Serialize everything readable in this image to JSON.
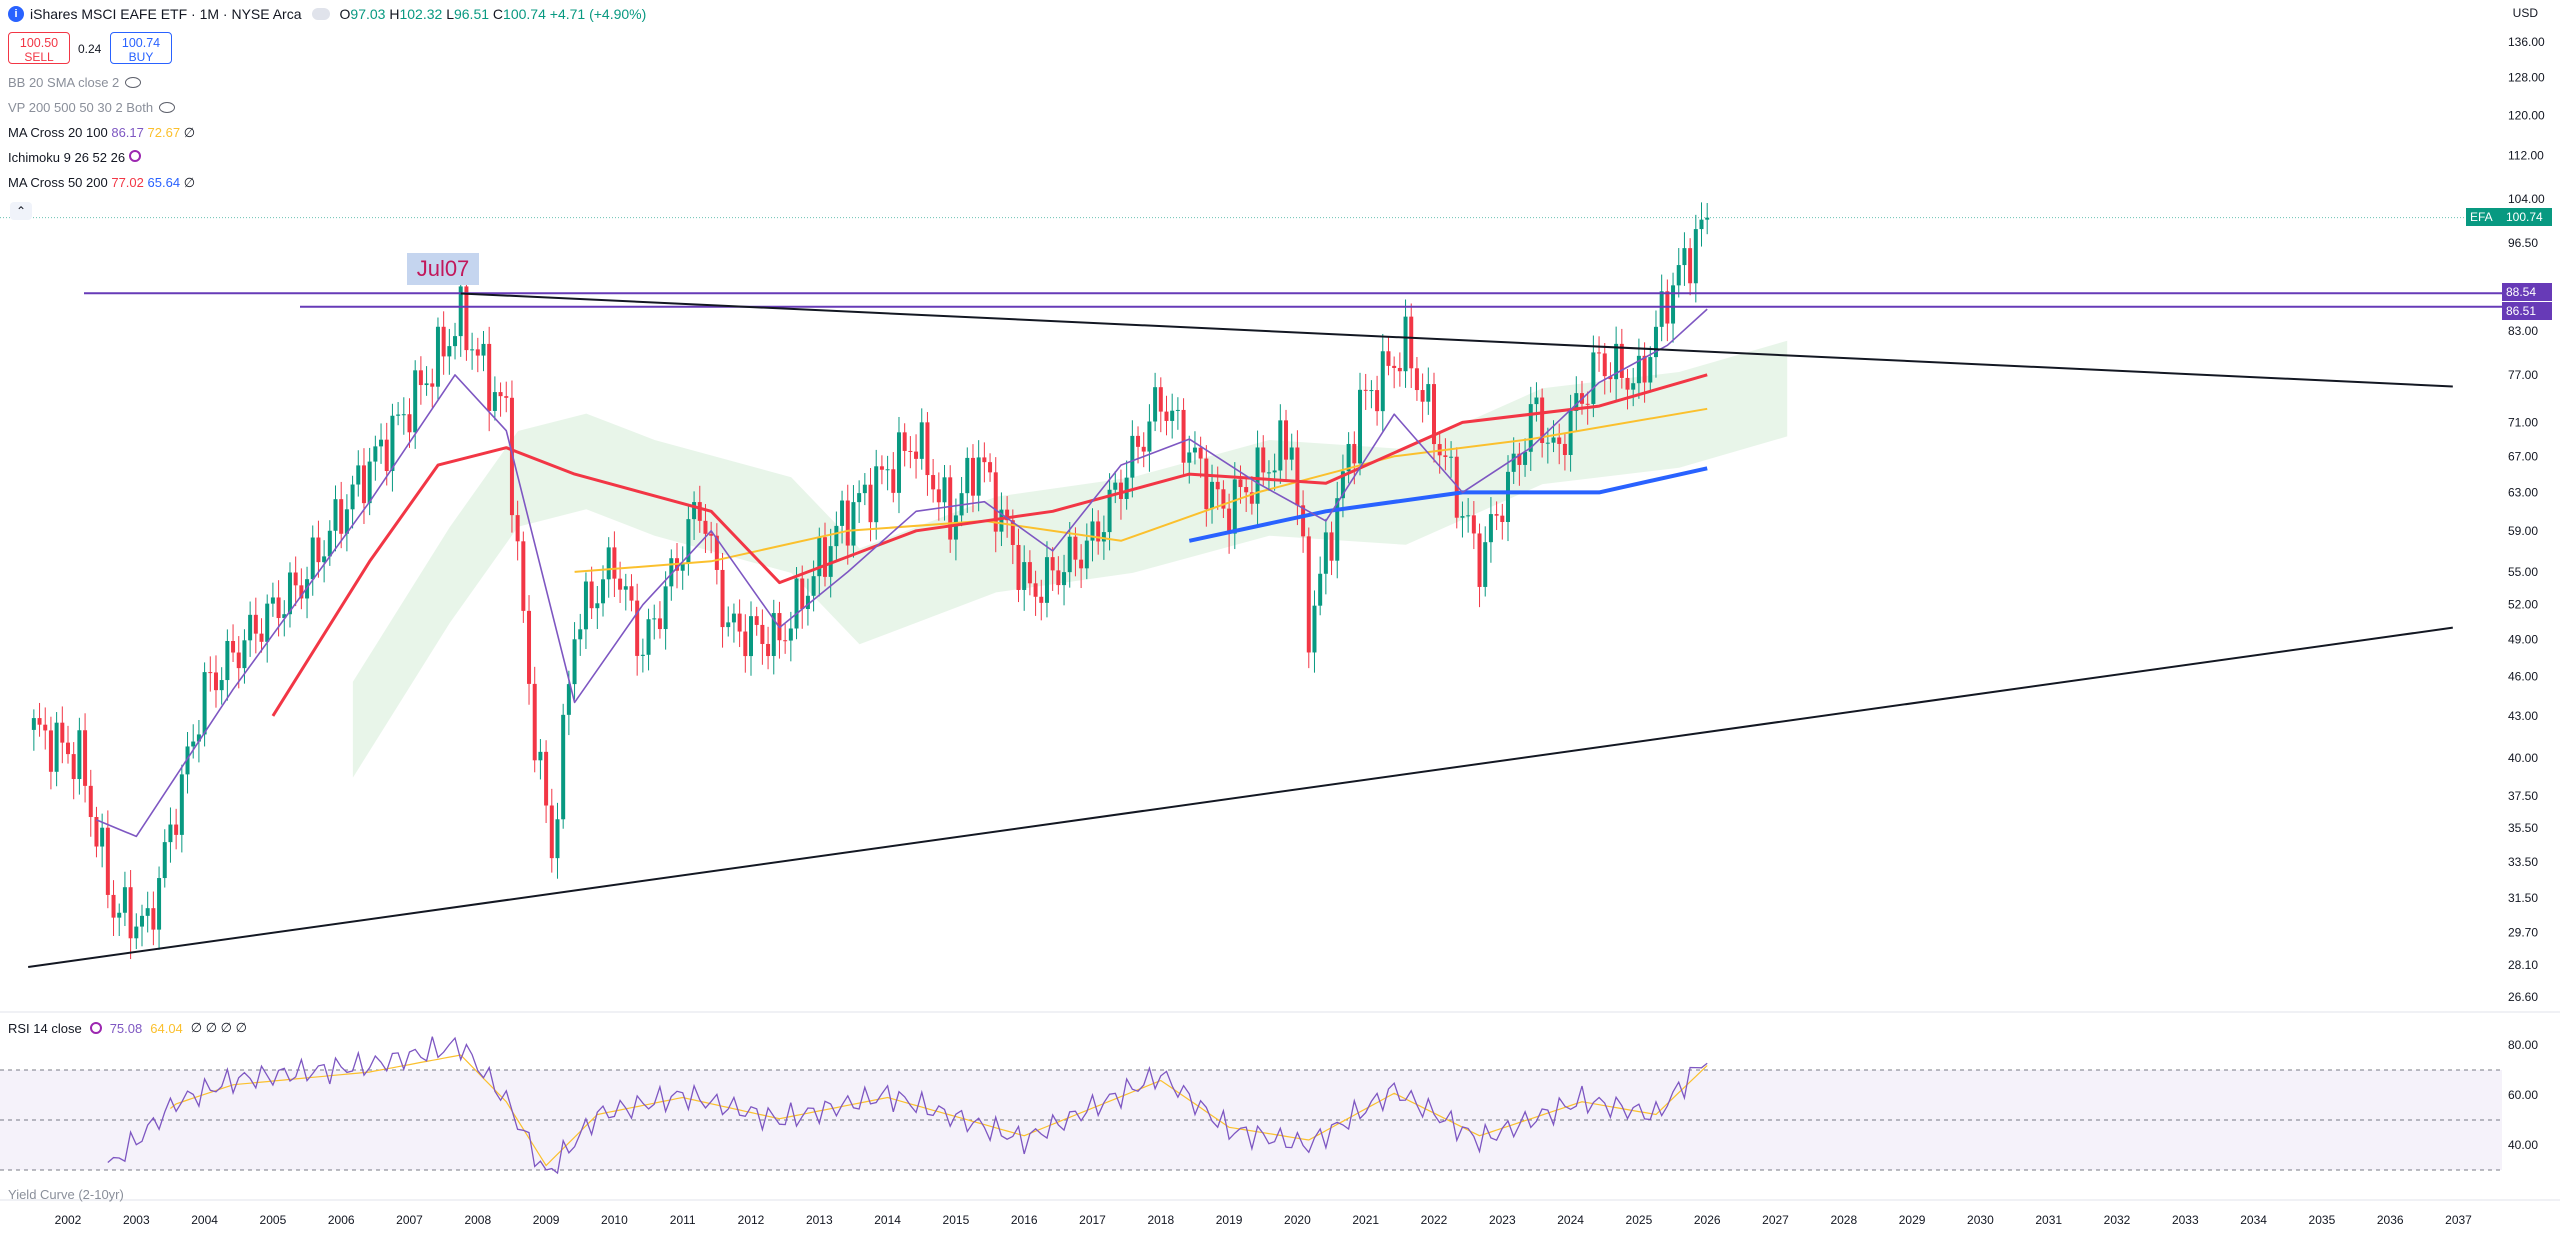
{
  "header": {
    "title": "iShares MSCI EAFE ETF · 1M · NYSE Arca",
    "ohlc": {
      "o_label": "O",
      "o": "97.03",
      "h_label": "H",
      "h": "102.32",
      "l_label": "L",
      "l": "96.51",
      "c_label": "C",
      "c": "100.74",
      "change": "+4.71 (+4.90%)"
    },
    "sell_price": "100.50",
    "sell_label": "SELL",
    "spread": "0.24",
    "buy_price": "100.74",
    "buy_label": "BUY",
    "currency": "USD"
  },
  "indicators": [
    {
      "label": "BB 20 SMA close 2",
      "values": []
    },
    {
      "label": "VP 200 500 50 30 2 Both",
      "values": []
    },
    {
      "label": "MA Cross 20 100",
      "values": [
        "86.17",
        "72.67"
      ],
      "suffix": "∅"
    },
    {
      "label": "Ichimoku 9 26 52 26",
      "values": []
    },
    {
      "label": "MA Cross 50 200",
      "values": [
        "77.02",
        "65.64"
      ],
      "suffix": "∅"
    }
  ],
  "rsi": {
    "label": "RSI 14 close",
    "value": "75.08",
    "ma": "64.04",
    "suffix": "∅ ∅ ∅ ∅",
    "ticks": [
      "80.00",
      "60.00",
      "40.00"
    ]
  },
  "yield_curve_label": "Yield Curve (2-10yr)",
  "annotation": "Jul07",
  "price_tags": {
    "symbol": "EFA",
    "last": "100.74",
    "level1": "88.54",
    "level2": "86.51"
  },
  "colors": {
    "up": "#089981",
    "down": "#f23645",
    "ma20": "#7e57c2",
    "ma100": "#fbc02d",
    "ma50": "#f23645",
    "ma200": "#2962ff",
    "rsi": "#7e57c2",
    "level": "#673ab7"
  },
  "chart_data": {
    "type": "candlestick",
    "y_scale": "log",
    "ylim": [
      26.6,
      136
    ],
    "y_ticks": [
      "136.00",
      "128.00",
      "120.00",
      "112.00",
      "104.00",
      "96.50",
      "83.00",
      "77.00",
      "71.00",
      "67.00",
      "63.00",
      "59.00",
      "55.00",
      "52.00",
      "49.00",
      "46.00",
      "43.00",
      "40.00",
      "37.50",
      "35.50",
      "33.50",
      "31.50",
      "29.70",
      "28.10",
      "26.60"
    ],
    "x_ticks": [
      "2002",
      "2003",
      "2004",
      "2005",
      "2006",
      "2007",
      "2008",
      "2009",
      "2010",
      "2011",
      "2012",
      "2013",
      "2014",
      "2015",
      "2016",
      "2017",
      "2018",
      "2019",
      "2020",
      "2021",
      "2022",
      "2023",
      "2024",
      "2025",
      "2026",
      "2027",
      "2028",
      "2029",
      "2030",
      "2031",
      "2032",
      "2033",
      "2034",
      "2035",
      "2036",
      "2037"
    ],
    "close_path": [
      [
        "2001-07",
        42
      ],
      [
        "2002-03",
        40
      ],
      [
        "2002-09",
        31
      ],
      [
        "2003-03",
        30
      ],
      [
        "2004-01",
        45
      ],
      [
        "2004-10",
        50
      ],
      [
        "2005-06",
        54
      ],
      [
        "2006-04",
        64
      ],
      [
        "2006-12",
        72
      ],
      [
        "2007-05",
        78
      ],
      [
        "2007-10",
        85
      ],
      [
        "2008-03",
        76
      ],
      [
        "2008-06",
        72
      ],
      [
        "2008-10",
        45
      ],
      [
        "2009-02",
        34
      ],
      [
        "2009-06",
        50
      ],
      [
        "2010-01",
        56
      ],
      [
        "2010-06",
        48
      ],
      [
        "2011-04",
        62
      ],
      [
        "2011-09",
        50
      ],
      [
        "2012-06",
        49
      ],
      [
        "2013-05",
        60
      ],
      [
        "2014-06",
        69
      ],
      [
        "2014-12",
        60
      ],
      [
        "2015-05",
        67
      ],
      [
        "2016-02",
        53
      ],
      [
        "2017-01",
        58
      ],
      [
        "2018-01",
        74
      ],
      [
        "2018-12",
        61
      ],
      [
        "2019-12",
        69
      ],
      [
        "2020-03",
        50
      ],
      [
        "2020-12",
        73
      ],
      [
        "2021-08",
        81
      ],
      [
        "2022-09",
        56
      ],
      [
        "2023-07",
        73
      ],
      [
        "2023-10",
        67
      ],
      [
        "2024-06",
        79
      ],
      [
        "2025-01",
        76
      ],
      [
        "2025-06",
        88
      ],
      [
        "2026-01",
        100.74
      ]
    ],
    "horizontal_levels": [
      88.54,
      86.51
    ],
    "trendlines": [
      {
        "from": [
          "2007-10",
          88.5
        ],
        "to": [
          "2036-12",
          75.5
        ]
      },
      {
        "from": [
          "2001-06",
          28.0
        ],
        "to": [
          "2036-12",
          50.0
        ]
      }
    ],
    "ma_20": [
      [
        "2002-06",
        36
      ],
      [
        "2003-01",
        35
      ],
      [
        "2004-06",
        45
      ],
      [
        "2006-06",
        62
      ],
      [
        "2007-09",
        77
      ],
      [
        "2008-06",
        70
      ],
      [
        "2009-06",
        44
      ],
      [
        "2010-06",
        52
      ],
      [
        "2011-06",
        59
      ],
      [
        "2012-06",
        50
      ],
      [
        "2013-06",
        55
      ],
      [
        "2014-06",
        61
      ],
      [
        "2015-06",
        62
      ],
      [
        "2016-06",
        57
      ],
      [
        "2017-06",
        66
      ],
      [
        "2018-06",
        69
      ],
      [
        "2019-06",
        64
      ],
      [
        "2020-06",
        60
      ],
      [
        "2021-06",
        72
      ],
      [
        "2022-06",
        63
      ],
      [
        "2023-06",
        68
      ],
      [
        "2024-06",
        76
      ],
      [
        "2025-06",
        81
      ],
      [
        "2026-01",
        86.17
      ]
    ],
    "ma_50": [
      [
        "2005-01",
        43
      ],
      [
        "2006-06",
        56
      ],
      [
        "2007-06",
        66
      ],
      [
        "2008-06",
        68
      ],
      [
        "2009-06",
        65
      ],
      [
        "2011-06",
        61
      ],
      [
        "2012-06",
        54
      ],
      [
        "2014-06",
        59
      ],
      [
        "2016-06",
        61
      ],
      [
        "2018-06",
        65
      ],
      [
        "2020-06",
        64
      ],
      [
        "2022-06",
        71
      ],
      [
        "2024-06",
        73
      ],
      [
        "2026-01",
        77.02
      ]
    ],
    "ma_100": [
      [
        "2009-06",
        55
      ],
      [
        "2011-06",
        56
      ],
      [
        "2013-06",
        59
      ],
      [
        "2015-06",
        60
      ],
      [
        "2017-06",
        58
      ],
      [
        "2019-06",
        63
      ],
      [
        "2021-06",
        67
      ],
      [
        "2023-06",
        69
      ],
      [
        "2026-01",
        72.67
      ]
    ],
    "ma_200": [
      [
        "2018-06",
        58
      ],
      [
        "2020-06",
        61
      ],
      [
        "2022-06",
        63
      ],
      [
        "2024-06",
        63
      ],
      [
        "2026-01",
        65.64
      ]
    ],
    "rsi_values": [
      [
        "2002-08",
        31
      ],
      [
        "2003-08",
        57
      ],
      [
        "2004-06",
        66
      ],
      [
        "2006-06",
        72
      ],
      [
        "2007-10",
        80
      ],
      [
        "2008-06",
        58
      ],
      [
        "2009-01",
        28
      ],
      [
        "2009-10",
        52
      ],
      [
        "2011-01",
        60
      ],
      [
        "2012-06",
        50
      ],
      [
        "2014-01",
        60
      ],
      [
        "2016-01",
        42
      ],
      [
        "2018-01",
        68
      ],
      [
        "2019-01",
        46
      ],
      [
        "2020-03",
        40
      ],
      [
        "2021-06",
        62
      ],
      [
        "2022-09",
        42
      ],
      [
        "2024-03",
        58
      ],
      [
        "2025-04",
        52
      ],
      [
        "2026-01",
        75.08
      ]
    ]
  }
}
